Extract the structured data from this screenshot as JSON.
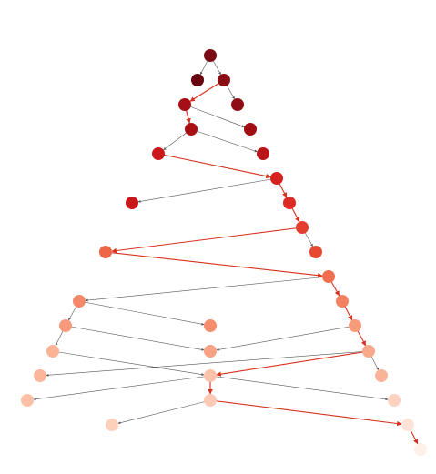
{
  "nodes": [
    {
      "color": "#7a0a13"
    },
    {
      "color": "#67000d"
    },
    {
      "color": "#8c0e15"
    },
    {
      "color": "#a50f15"
    },
    {
      "color": "#900c14"
    },
    {
      "color": "#a81016"
    },
    {
      "color": "#a00e15"
    },
    {
      "color": "#cb181d"
    },
    {
      "color": "#b81419"
    },
    {
      "color": "#d52221"
    },
    {
      "color": "#c9171c"
    },
    {
      "color": "#dc2b25"
    },
    {
      "color": "#e33d2d"
    },
    {
      "color": "#e84832"
    },
    {
      "color": "#ef6548"
    },
    {
      "color": "#f16e4f"
    },
    {
      "color": "#f4896a"
    },
    {
      "color": "#f3805f"
    },
    {
      "color": "#f58e6c"
    },
    {
      "color": "#f79a7b"
    },
    {
      "color": "#f89b7c"
    },
    {
      "color": "#f8a183"
    },
    {
      "color": "#fbb396"
    },
    {
      "color": "#f9a98b"
    },
    {
      "color": "#fcc3ab"
    },
    {
      "color": "#fcb69c"
    },
    {
      "color": "#fbb398"
    },
    {
      "color": "#fcc0a6"
    },
    {
      "color": "#fdcab5"
    },
    {
      "color": "#fdd2c0"
    },
    {
      "color": "#fdd0bc"
    },
    {
      "color": "#fee4d8"
    },
    {
      "color": "#fff0e8"
    }
  ],
  "edges": [
    {
      "source": 0,
      "target": 1,
      "color": "#555555"
    },
    {
      "source": 0,
      "target": 2,
      "color": "#555555"
    },
    {
      "source": 2,
      "target": 3,
      "color": "#d7301f"
    },
    {
      "source": 2,
      "target": 4,
      "color": "#555555"
    },
    {
      "source": 3,
      "target": 5,
      "color": "#d7301f"
    },
    {
      "source": 3,
      "target": 6,
      "color": "#555555"
    },
    {
      "source": 5,
      "target": 7,
      "color": "#555555"
    },
    {
      "source": 5,
      "target": 8,
      "color": "#555555"
    },
    {
      "source": 7,
      "target": 9,
      "color": "#d7301f"
    },
    {
      "source": 9,
      "target": 10,
      "color": "#555555"
    },
    {
      "source": 9,
      "target": 11,
      "color": "#d7301f"
    },
    {
      "source": 11,
      "target": 12,
      "color": "#d7301f"
    },
    {
      "source": 12,
      "target": 13,
      "color": "#555555"
    },
    {
      "source": 12,
      "target": 14,
      "color": "#d7301f"
    },
    {
      "source": 14,
      "target": 15,
      "color": "#d7301f"
    },
    {
      "source": 15,
      "target": 16,
      "color": "#555555"
    },
    {
      "source": 15,
      "target": 17,
      "color": "#d7301f"
    },
    {
      "source": 16,
      "target": 18,
      "color": "#555555"
    },
    {
      "source": 16,
      "target": 19,
      "color": "#555555"
    },
    {
      "source": 17,
      "target": 20,
      "color": "#d7301f"
    },
    {
      "source": 19,
      "target": 21,
      "color": "#555555"
    },
    {
      "source": 20,
      "target": 21,
      "color": "#555555"
    },
    {
      "source": 19,
      "target": 22,
      "color": "#555555"
    },
    {
      "source": 20,
      "target": 23,
      "color": "#d7301f"
    },
    {
      "source": 22,
      "target": 24,
      "color": "#555555"
    },
    {
      "source": 23,
      "target": 25,
      "color": "#555555"
    },
    {
      "source": 23,
      "target": 24,
      "color": "#d7301f"
    },
    {
      "source": 23,
      "target": 26,
      "color": "#555555"
    },
    {
      "source": 24,
      "target": 27,
      "color": "#555555"
    },
    {
      "source": 24,
      "target": 28,
      "color": "#d7301f"
    },
    {
      "source": 24,
      "target": 29,
      "color": "#555555"
    },
    {
      "source": 28,
      "target": 30,
      "color": "#555555"
    },
    {
      "source": 28,
      "target": 31,
      "color": "#d7301f"
    },
    {
      "source": 31,
      "target": 32,
      "color": "#d7301f"
    }
  ]
}
